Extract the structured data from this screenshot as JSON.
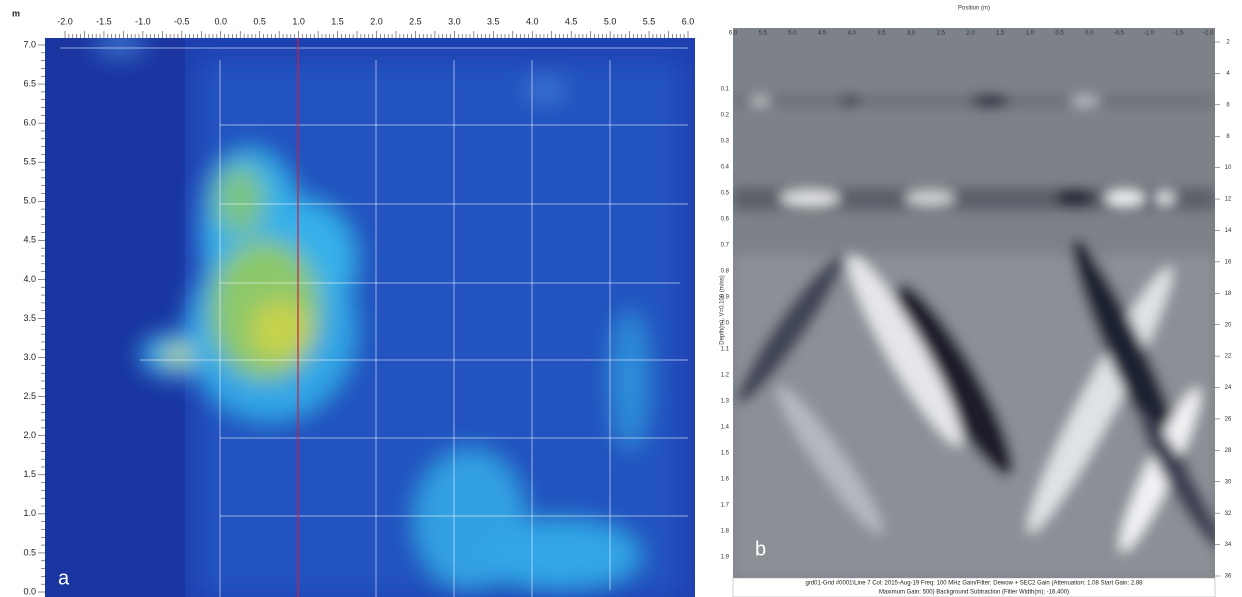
{
  "panel_a": {
    "label": "a",
    "unit": "m",
    "x_ticks": [
      "-2.0",
      "-1.5",
      "-1.0",
      "-0.5",
      "0.0",
      "0.5",
      "1.0",
      "1.5",
      "2.0",
      "2.5",
      "3.0",
      "3.5",
      "4.0",
      "4.5",
      "5.0",
      "5.5",
      "6.0"
    ],
    "y_ticks": [
      "7.0",
      "6.5",
      "6.0",
      "5.5",
      "5.0",
      "4.5",
      "4.0",
      "3.5",
      "3.0",
      "2.5",
      "2.0",
      "1.5",
      "1.0",
      "0.5",
      "0.0"
    ]
  },
  "panel_b": {
    "label": "b",
    "title": "Position (m)",
    "y_title": "Depth(m), V=0.100 (m/ns)",
    "x_ticks": [
      "6.0",
      "5.5",
      "5.0",
      "4.5",
      "4.0",
      "3.5",
      "3.0",
      "2.5",
      "2.0",
      "1.5",
      "1.0",
      "0.5",
      "0.0",
      "-0.5",
      "-1.0",
      "-1.5",
      "-2.0"
    ],
    "y_ticks": [
      "0.1",
      "0.2",
      "0.3",
      "0.4",
      "0.5",
      "0.6",
      "0.7",
      "0.8",
      "0.9",
      "1.0",
      "1.1",
      "1.2",
      "1.3",
      "1.4",
      "1.5",
      "1.6",
      "1.7",
      "1.8",
      "1.9"
    ],
    "y2_ticks": [
      "2",
      "4",
      "6",
      "8",
      "10",
      "12",
      "14",
      "16",
      "18",
      "20",
      "22",
      "24",
      "26",
      "28",
      "30",
      "32",
      "34",
      "36"
    ],
    "footer": [
      "grd01-Grid #0001\\Line 7  Col: 2015-Aug-19 Freq: 100 MHz Gain/Filter: Dewow + SEC2 Gain (Attenuation: 1.08 Start Gain: 2.88",
      "Maximum Gain: 500) Background Subtraction (Filter Width(m): -16.400)"
    ]
  }
}
